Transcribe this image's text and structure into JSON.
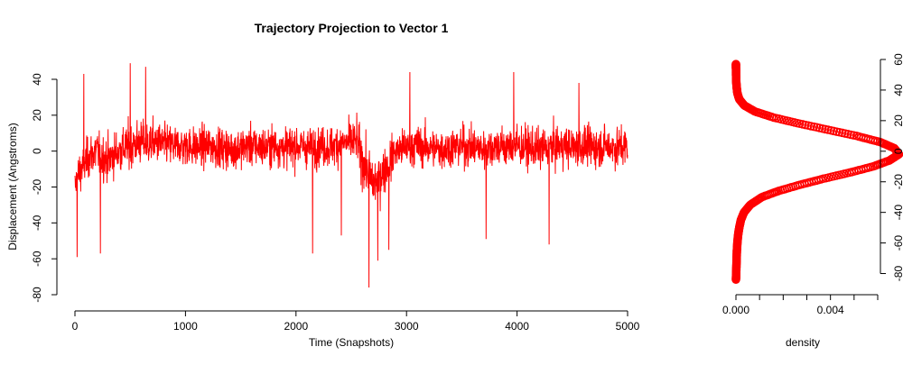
{
  "colors": {
    "series": "#ff0000",
    "axis": "#000000",
    "background": "#ffffff"
  },
  "chart_data": [
    {
      "id": "trajectory",
      "type": "line",
      "title": "Trajectory Projection to Vector 1",
      "xlabel": "Time (Snapshots)",
      "ylabel": "Displacement (Angstroms)",
      "xlim": [
        0,
        5000
      ],
      "ylim": [
        -80,
        40
      ],
      "xticks": [
        0,
        1000,
        2000,
        3000,
        4000,
        5000
      ],
      "yticks": [
        -80,
        -60,
        -40,
        -20,
        0,
        20,
        40
      ],
      "grid": false,
      "legend": "none",
      "series": [
        {
          "color": "#ff0000",
          "sampled_x": [
            0,
            20,
            40,
            60,
            80,
            100,
            150,
            200,
            250,
            300,
            350,
            400,
            450,
            500,
            550,
            600,
            650,
            700,
            800,
            900,
            1000,
            1100,
            1200,
            1300,
            1400,
            1500,
            1600,
            1700,
            1800,
            1900,
            2000,
            2100,
            2200,
            2300,
            2400,
            2500,
            2550,
            2600,
            2650,
            2700,
            2750,
            2800,
            2850,
            2900,
            3000,
            3100,
            3200,
            3300,
            3400,
            3500,
            3600,
            3700,
            3800,
            3900,
            4000,
            4100,
            4200,
            4300,
            4400,
            4500,
            4600,
            4700,
            4800,
            4900,
            5000
          ],
          "mean_y": [
            -20,
            -15,
            -12,
            -10,
            -8,
            -5,
            -2,
            0,
            -3,
            -5,
            -2,
            0,
            2,
            3,
            4,
            5,
            4,
            5,
            4,
            3,
            3,
            2,
            3,
            2,
            1,
            2,
            3,
            2,
            3,
            2,
            3,
            2,
            3,
            2,
            4,
            5,
            6,
            -5,
            -12,
            -18,
            -15,
            -10,
            -5,
            0,
            2,
            3,
            2,
            1,
            2,
            3,
            2,
            1,
            3,
            2,
            3,
            2,
            1,
            2,
            3,
            2,
            3,
            2,
            3,
            2,
            3
          ],
          "spread_y": [
            12,
            14,
            15,
            15,
            14,
            14,
            15,
            16,
            16,
            16,
            15,
            15,
            15,
            16,
            16,
            15,
            15,
            15,
            14,
            14,
            14,
            14,
            14,
            14,
            14,
            14,
            14,
            14,
            14,
            14,
            14,
            14,
            14,
            14,
            14,
            14,
            15,
            17,
            18,
            18,
            17,
            16,
            15,
            14,
            14,
            14,
            14,
            14,
            14,
            14,
            14,
            14,
            14,
            14,
            14,
            14,
            14,
            14,
            14,
            14,
            14,
            14,
            14,
            14,
            14
          ],
          "extremes": [
            {
              "x": 20,
              "y": -59
            },
            {
              "x": 80,
              "y": 43
            },
            {
              "x": 230,
              "y": -57
            },
            {
              "x": 500,
              "y": 49
            },
            {
              "x": 640,
              "y": 47
            },
            {
              "x": 2150,
              "y": -57
            },
            {
              "x": 2410,
              "y": -47
            },
            {
              "x": 2660,
              "y": -76
            },
            {
              "x": 2740,
              "y": -61
            },
            {
              "x": 2840,
              "y": -55
            },
            {
              "x": 3030,
              "y": 44
            },
            {
              "x": 3720,
              "y": -49
            },
            {
              "x": 3970,
              "y": 44
            },
            {
              "x": 4290,
              "y": -52
            },
            {
              "x": 4560,
              "y": 38
            }
          ]
        }
      ]
    },
    {
      "id": "density",
      "type": "scatter",
      "xlabel": "density",
      "ylabel": "",
      "xlim": [
        0,
        0.006
      ],
      "ylim": [
        -85,
        60
      ],
      "xticks": [
        0.0,
        0.002,
        0.004
      ],
      "xticklabels": [
        "0.000",
        "",
        "0.004"
      ],
      "yticks": [
        -80,
        -60,
        -40,
        -20,
        0,
        20,
        40,
        60
      ],
      "y_axis_side": "right",
      "grid": false,
      "legend": "none",
      "series": [
        {
          "color": "#ff0000",
          "marker": "open-circle",
          "y": [
            -84,
            -80,
            -75,
            -70,
            -65,
            -60,
            -55,
            -50,
            -45,
            -40,
            -35,
            -30,
            -26,
            -22,
            -18,
            -14,
            -10,
            -6,
            -2,
            2,
            6,
            10,
            14,
            18,
            22,
            26,
            30,
            34,
            38,
            42,
            46,
            50,
            54,
            57
          ],
          "x": [
            0.0,
            1e-05,
            2e-05,
            3e-05,
            4e-05,
            6e-05,
            9e-05,
            0.00014,
            0.00021,
            0.00034,
            0.00061,
            0.0011,
            0.0018,
            0.0027,
            0.0037,
            0.0048,
            0.0058,
            0.0065,
            0.0069,
            0.0067,
            0.0061,
            0.0051,
            0.0039,
            0.0027,
            0.0016,
            0.0008,
            0.00035,
            0.00014,
            6e-05,
            3e-05,
            1e-05,
            5e-06,
            2e-06,
            0.0
          ]
        }
      ]
    }
  ]
}
